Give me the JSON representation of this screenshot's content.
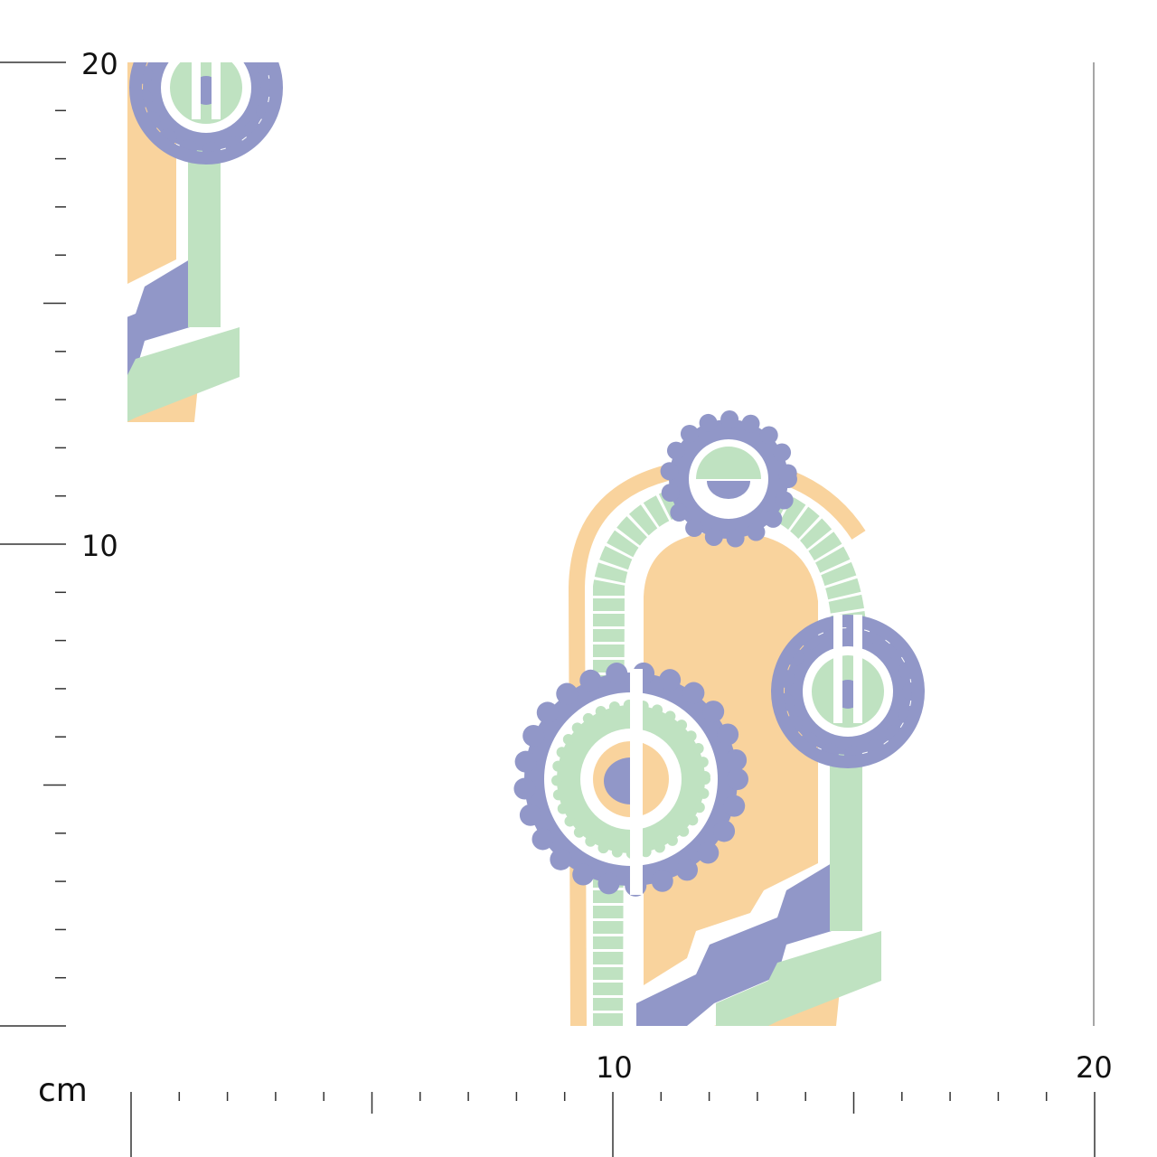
{
  "colors": {
    "purple": "#9197c8",
    "green": "#bfe2c1",
    "orange": "#f9d39d",
    "ruler": "#333333"
  },
  "ruler": {
    "unit": "cm",
    "vertical_labels": [
      "20",
      "10"
    ],
    "horizontal_labels": [
      "10",
      "20"
    ]
  }
}
